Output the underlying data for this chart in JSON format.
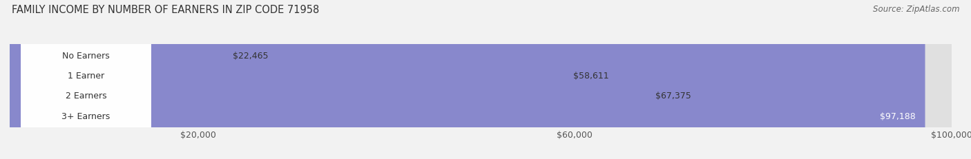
{
  "title": "FAMILY INCOME BY NUMBER OF EARNERS IN ZIP CODE 71958",
  "source": "Source: ZipAtlas.com",
  "categories": [
    "No Earners",
    "1 Earner",
    "2 Earners",
    "3+ Earners"
  ],
  "values": [
    22465,
    58611,
    67375,
    97188
  ],
  "bar_colors": [
    "#a8c4e0",
    "#b09ec0",
    "#4dbfbf",
    "#8888cc"
  ],
  "bar_labels": [
    "$22,465",
    "$58,611",
    "$67,375",
    "$97,188"
  ],
  "xlim": [
    0,
    100000
  ],
  "xticks": [
    20000,
    60000,
    100000
  ],
  "xticklabels": [
    "$20,000",
    "$60,000",
    "$100,000"
  ],
  "background_color": "#f2f2f2",
  "bar_bg_color": "#e0e0e0",
  "bar_height": 0.58,
  "title_fontsize": 10.5,
  "source_fontsize": 8.5,
  "tick_fontsize": 9,
  "category_fontsize": 9,
  "label_outside_color": "#333333",
  "label_inside_color": "#ffffff"
}
